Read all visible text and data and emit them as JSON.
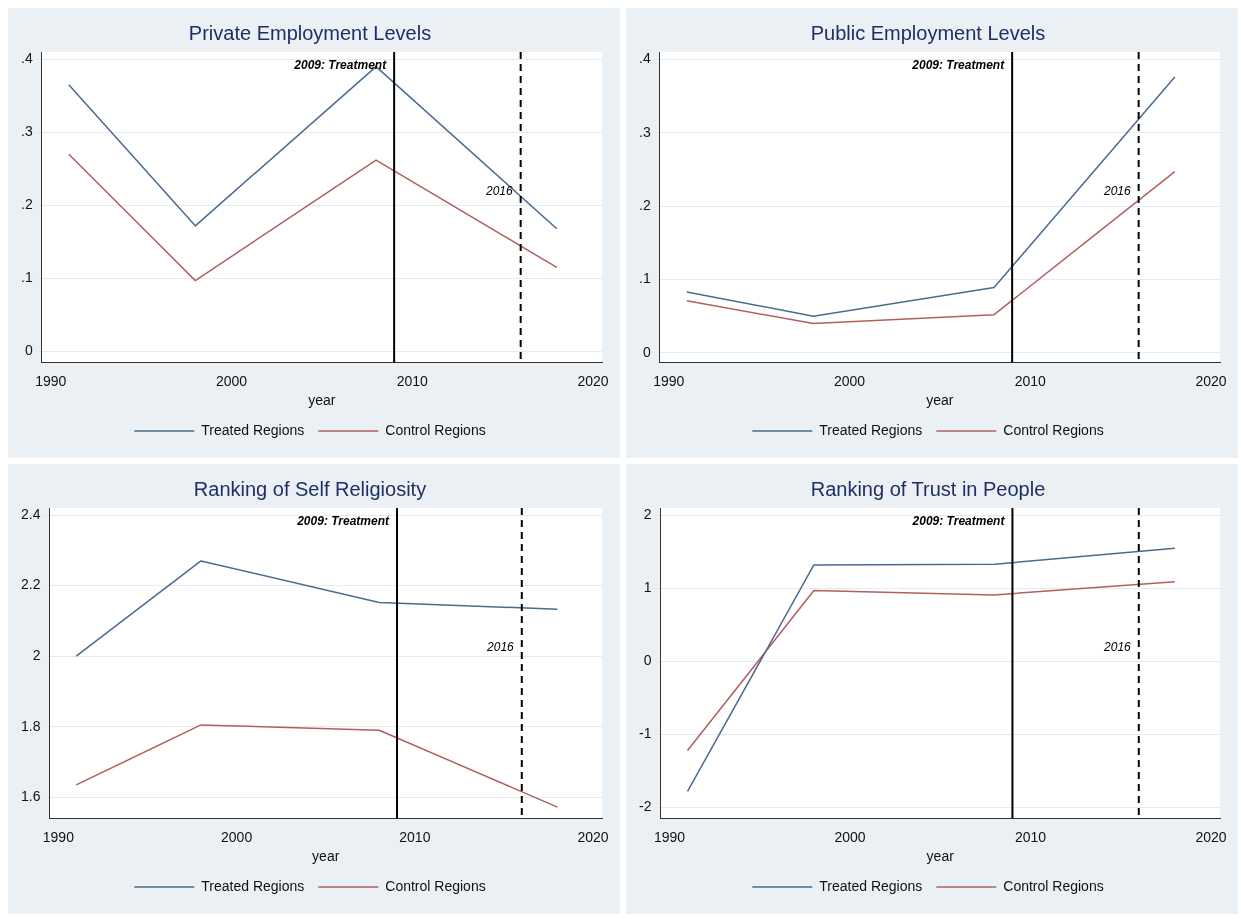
{
  "chart_data": [
    {
      "type": "line",
      "title": "Private Employment Levels",
      "xlabel": "year",
      "x": [
        1991,
        1998,
        2008,
        2018
      ],
      "series": [
        {
          "name": "Treated Regions",
          "color": "#4a6b8f",
          "values": [
            0.365,
            0.172,
            0.39,
            0.168
          ]
        },
        {
          "name": "Control Regions",
          "color": "#b0605f",
          "values": [
            0.27,
            0.097,
            0.262,
            0.115
          ]
        }
      ],
      "xlim": [
        1989.5,
        2020.5
      ],
      "xticks": [
        1990,
        2000,
        2010,
        2020
      ],
      "ylim": [
        -0.015,
        0.41
      ],
      "yticks": [
        0,
        {
          "value": 0.1,
          "label": ".1"
        },
        {
          "value": 0.2,
          "label": ".2"
        },
        {
          "value": 0.3,
          "label": ".3"
        },
        {
          "value": 0.4,
          "label": ".4"
        }
      ],
      "grid": "y",
      "legend": "bottom",
      "ref_lines": [
        {
          "axis": "x",
          "value": 2009,
          "label": "2009: Treatment"
        },
        {
          "axis": "x",
          "value": 2016,
          "label": "2016",
          "line_style": "dashed"
        }
      ]
    },
    {
      "type": "line",
      "title": "Public Employment Levels",
      "xlabel": "year",
      "x": [
        1991,
        1998,
        2008,
        2018
      ],
      "series": [
        {
          "name": "Treated Regions",
          "color": "#4a6b8f",
          "values": [
            0.083,
            0.05,
            0.089,
            0.376
          ]
        },
        {
          "name": "Control Regions",
          "color": "#b0605f",
          "values": [
            0.071,
            0.04,
            0.052,
            0.247
          ]
        }
      ],
      "xlim": [
        1989.5,
        2020.5
      ],
      "xticks": [
        1990,
        2000,
        2010,
        2020
      ],
      "ylim": [
        -0.013,
        0.41
      ],
      "yticks": [
        0,
        {
          "value": 0.1,
          "label": ".1"
        },
        {
          "value": 0.2,
          "label": ".2"
        },
        {
          "value": 0.3,
          "label": ".3"
        },
        {
          "value": 0.4,
          "label": ".4"
        }
      ],
      "grid": "y",
      "legend": "bottom",
      "ref_lines": [
        {
          "axis": "x",
          "value": 2009,
          "label": "2009: Treatment"
        },
        {
          "axis": "x",
          "value": 2016,
          "label": "2016",
          "line_style": "dashed"
        }
      ]
    },
    {
      "type": "line",
      "title": "Ranking of Self Religiosity",
      "xlabel": "year",
      "x": [
        1991,
        1998,
        2008,
        2018
      ],
      "series": [
        {
          "name": "Treated Regions",
          "color": "#4a6b8f",
          "values": [
            2.0,
            2.27,
            2.152,
            2.133
          ]
        },
        {
          "name": "Control Regions",
          "color": "#b0605f",
          "values": [
            1.635,
            1.805,
            1.79,
            1.572
          ]
        }
      ],
      "xlim": [
        1989.5,
        2020.5
      ],
      "xticks": [
        1990,
        2000,
        2010,
        2020
      ],
      "ylim": [
        1.54,
        2.42
      ],
      "yticks": [
        1.6,
        1.8,
        2,
        2.2,
        2.4
      ],
      "grid": "y",
      "legend": "bottom",
      "ref_lines": [
        {
          "axis": "x",
          "value": 2009,
          "label": "2009: Treatment"
        },
        {
          "axis": "x",
          "value": 2016,
          "label": "2016",
          "line_style": "dashed"
        }
      ]
    },
    {
      "type": "line",
      "title": "Ranking of Trust in People",
      "xlabel": "year",
      "x": [
        1991,
        1998,
        2008,
        2018
      ],
      "series": [
        {
          "name": "Treated Regions",
          "color": "#4a6b8f",
          "values": [
            -1.78,
            1.32,
            1.33,
            1.55
          ]
        },
        {
          "name": "Control Regions",
          "color": "#b0605f",
          "values": [
            -1.22,
            0.97,
            0.91,
            1.09
          ]
        }
      ],
      "xlim": [
        1989.5,
        2020.5
      ],
      "xticks": [
        1990,
        2000,
        2010,
        2020
      ],
      "ylim": [
        -2.15,
        2.1
      ],
      "yticks": [
        -2,
        -1,
        0,
        1,
        2
      ],
      "grid": "y",
      "legend": "bottom",
      "ref_lines": [
        {
          "axis": "x",
          "value": 2009,
          "label": "2009: Treatment"
        },
        {
          "axis": "x",
          "value": 2016,
          "label": "2016",
          "line_style": "dashed"
        }
      ]
    }
  ]
}
